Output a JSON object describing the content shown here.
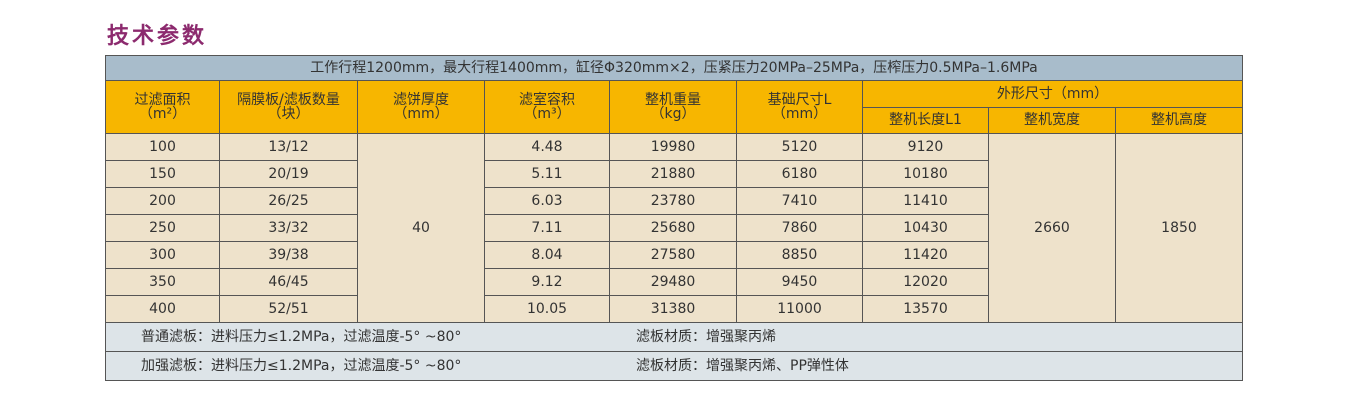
{
  "title": "技术参数",
  "table": {
    "banner": "工作行程1200mm，最大行程1400mm，缸径Φ320mm×2，压紧压力20MPa–25MPa，压榨压力0.5MPa–1.6MPa",
    "header": [
      [
        "过滤面积",
        "（m²）"
      ],
      [
        "隔膜板/滤板数量",
        "（块）"
      ],
      [
        "滤饼厚度",
        "（mm）"
      ],
      [
        "滤室容积",
        "（m³）"
      ],
      [
        "整机重量",
        "（kg）"
      ],
      [
        "基础尺寸L",
        "（mm）"
      ]
    ],
    "outer": {
      "label": "外形尺寸（mm）",
      "subs": [
        "整机长度L1",
        "整机宽度",
        "整机高度"
      ]
    },
    "rows": [
      [
        "100",
        "13/12",
        "4.48",
        "19980",
        "5120",
        "9120"
      ],
      [
        "150",
        "20/19",
        "5.11",
        "21880",
        "6180",
        "10180"
      ],
      [
        "200",
        "26/25",
        "6.03",
        "23780",
        "7410",
        "11410"
      ],
      [
        "250",
        "33/32",
        "7.11",
        "25680",
        "7860",
        "10430"
      ],
      [
        "300",
        "39/38",
        "8.04",
        "27580",
        "8850",
        "11420"
      ],
      [
        "350",
        "46/45",
        "9.12",
        "29480",
        "9450",
        "12020"
      ],
      [
        "400",
        "52/51",
        "10.05",
        "31380",
        "11000",
        "13570"
      ]
    ],
    "cake": "40",
    "width": "2660",
    "height": "1850",
    "footer": [
      [
        "普通滤板：进料压力≤1.2MPa，过滤温度-5° ~80°",
        "滤板材质：增强聚丙烯"
      ],
      [
        "加强滤板：进料压力≤1.2MPa，过滤温度-5° ~80°",
        "滤板材质：增强聚丙烯、PP弹性体"
      ]
    ]
  }
}
